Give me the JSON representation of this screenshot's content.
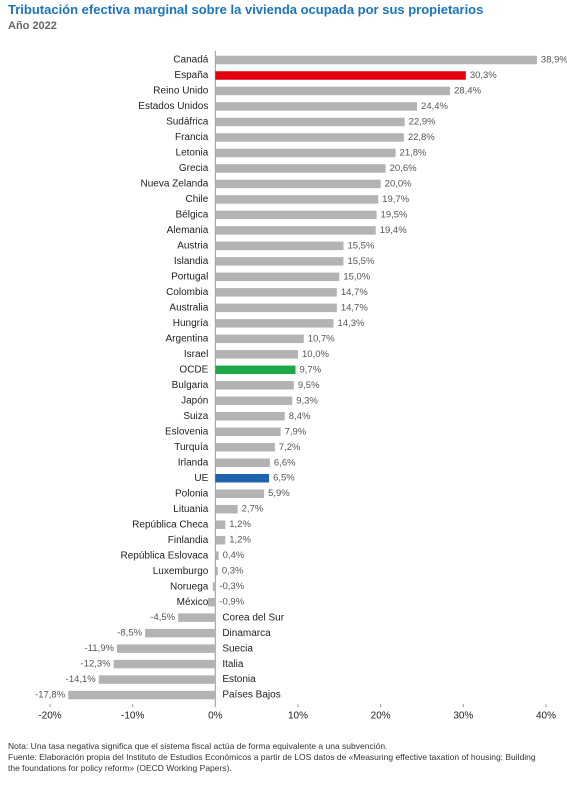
{
  "chart_data": {
    "type": "hbar",
    "title": "Tributación efectiva marginal sobre la vivienda ocupada por sus propietarios",
    "subtitle": "Año 2022",
    "categories": [
      "Canadá",
      "España",
      "Reino Unido",
      "Estados Unidos",
      "Sudáfrica",
      "Francia",
      "Letonia",
      "Grecia",
      "Nueva Zelanda",
      "Chile",
      "Bélgica",
      "Alemania",
      "Austria",
      "Islandia",
      "Portugal",
      "Colombia",
      "Australia",
      "Hungría",
      "Argentina",
      "Israel",
      "OCDE",
      "Bulgaria",
      "Japón",
      "Suiza",
      "Eslovenia",
      "Turquía",
      "Irlanda",
      "UE",
      "Polonia",
      "Lituania",
      "República Checa",
      "Finlandia",
      "República Eslovaca",
      "Luxemburgo",
      "Noruega",
      "México",
      "Corea del Sur",
      "Dinamarca",
      "Suecia",
      "Italia",
      "Estonia",
      "Países Bajos"
    ],
    "values": [
      38.9,
      30.3,
      28.4,
      24.4,
      22.9,
      22.8,
      21.8,
      20.6,
      20.0,
      19.7,
      19.5,
      19.4,
      15.5,
      15.5,
      15.0,
      14.7,
      14.7,
      14.3,
      10.7,
      10.0,
      9.7,
      9.5,
      9.3,
      8.4,
      7.9,
      7.2,
      6.6,
      6.5,
      5.9,
      2.7,
      1.2,
      1.2,
      0.4,
      0.3,
      -0.3,
      -0.9,
      -4.5,
      -8.5,
      -11.9,
      -12.3,
      -14.1,
      -17.8
    ],
    "value_labels": [
      "38,9%",
      "30,3%",
      "28,4%",
      "24,4%",
      "22,9%",
      "22,8%",
      "21,8%",
      "20,6%",
      "20,0%",
      "19,7%",
      "19,5%",
      "19,4%",
      "15,5%",
      "15,5%",
      "15,0%",
      "14,7%",
      "14,7%",
      "14,3%",
      "10,7%",
      "10,0%",
      "9,7%",
      "9,5%",
      "9,3%",
      "8,4%",
      "7,9%",
      "7,2%",
      "6,6%",
      "6,5%",
      "5,9%",
      "2,7%",
      "1,2%",
      "1,2%",
      "0,4%",
      "0,3%",
      "-0,3%",
      "-0,9%",
      "-4,5%",
      "-8,5%",
      "-11,9%",
      "-12,3%",
      "-14,1%",
      "-17,8%"
    ],
    "colors": [
      "#b3b3b3",
      "#e3000f",
      "#b3b3b3",
      "#b3b3b3",
      "#b3b3b3",
      "#b3b3b3",
      "#b3b3b3",
      "#b3b3b3",
      "#b3b3b3",
      "#b3b3b3",
      "#b3b3b3",
      "#b3b3b3",
      "#b3b3b3",
      "#b3b3b3",
      "#b3b3b3",
      "#b3b3b3",
      "#b3b3b3",
      "#b3b3b3",
      "#b3b3b3",
      "#b3b3b3",
      "#1fa84a",
      "#b3b3b3",
      "#b3b3b3",
      "#b3b3b3",
      "#b3b3b3",
      "#b3b3b3",
      "#b3b3b3",
      "#1f63b0",
      "#b3b3b3",
      "#b3b3b3",
      "#b3b3b3",
      "#b3b3b3",
      "#b3b3b3",
      "#b3b3b3",
      "#b3b3b3",
      "#b3b3b3",
      "#b3b3b3",
      "#b3b3b3",
      "#b3b3b3",
      "#b3b3b3",
      "#b3b3b3",
      "#b3b3b3"
    ],
    "xlim": [
      -20,
      40
    ],
    "xticks": [
      {
        "value": -20,
        "label": "-20%"
      },
      {
        "value": -10,
        "label": "-10%"
      },
      {
        "value": 0,
        "label": "0%"
      },
      {
        "value": 10,
        "label": "10%"
      },
      {
        "value": 20,
        "label": "20%"
      },
      {
        "value": 30,
        "label": "30%"
      },
      {
        "value": 40,
        "label": "40%"
      }
    ],
    "notes": [
      "Nota: Una tasa negativa significa que el sistema fiscal actúa de forma equivalente a una subvención.",
      "Fuente: Elaboración propia del Instituto de Estudios Económicos a partir de LOS datos de «Measuring effective taxation of housing: Building the foundations for policy reform» (OECD Working Papers)."
    ]
  }
}
